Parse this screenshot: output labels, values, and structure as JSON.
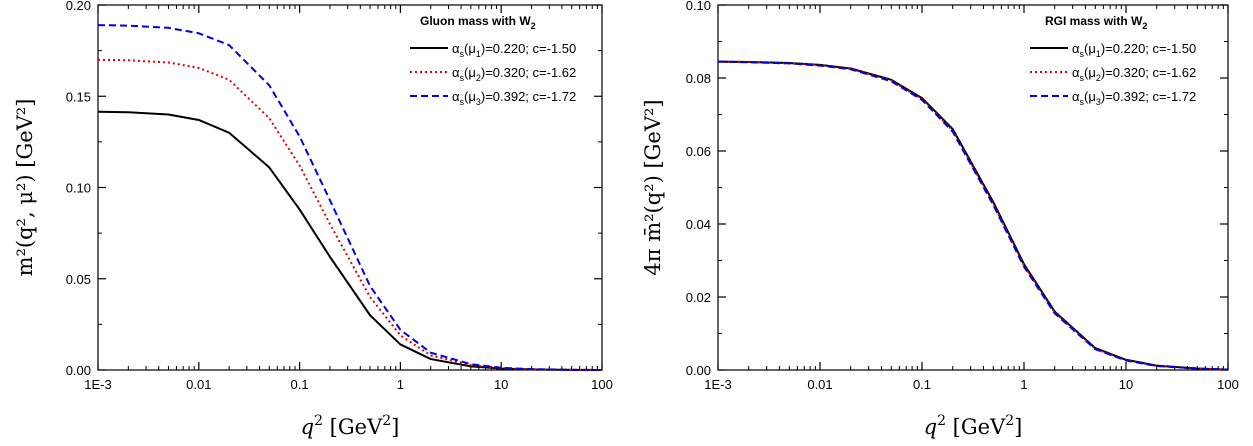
{
  "chart_data": [
    {
      "type": "line",
      "id": "left",
      "x_scale": "log",
      "xlim": [
        0.001,
        100
      ],
      "ylim": [
        0,
        0.2
      ],
      "x_ticks": [
        0.001,
        0.01,
        0.1,
        1,
        10,
        100
      ],
      "x_tick_labels": [
        "1E-3",
        "0.01",
        "0.1",
        "1",
        "10",
        "100"
      ],
      "y_ticks": [
        0,
        0.05,
        0.1,
        0.15,
        0.2
      ],
      "y_tick_labels": [
        "0.00",
        "0.05",
        "0.10",
        "0.15",
        "0.20"
      ],
      "xlabel": {
        "base": "q",
        "sup": "2",
        "unit": "[GeV",
        "unit_sup": "2",
        "unit_end": "]"
      },
      "ylabel": {
        "text": "m²(q², μ²) [GeV²]"
      },
      "legend": {
        "position": "top-right",
        "title": "Gluon mass with W",
        "title_sub": "2",
        "entries": [
          {
            "alpha": "α",
            "s": "s",
            "mu": "(μ",
            "idx": "1",
            "rest": ")=0.220; c=-1.50"
          },
          {
            "alpha": "α",
            "s": "s",
            "mu": "(μ",
            "idx": "2",
            "rest": ")=0.320; c=-1.62"
          },
          {
            "alpha": "α",
            "s": "s",
            "mu": "(μ",
            "idx": "3",
            "rest": ")=0.392; c=-1.72"
          }
        ]
      },
      "series": [
        {
          "color": "#000000",
          "dash": "solid",
          "x": [
            0.001,
            0.002,
            0.005,
            0.01,
            0.02,
            0.05,
            0.1,
            0.2,
            0.5,
            1,
            2,
            5,
            10,
            20,
            50,
            100
          ],
          "y": [
            0.1415,
            0.1412,
            0.14,
            0.137,
            0.13,
            0.111,
            0.088,
            0.062,
            0.03,
            0.014,
            0.006,
            0.002,
            0.0008,
            0.0003,
            0.0001,
            0.0
          ]
        },
        {
          "color": "#e00000",
          "dash": "dot",
          "x": [
            0.001,
            0.002,
            0.005,
            0.01,
            0.02,
            0.05,
            0.1,
            0.2,
            0.5,
            1,
            2,
            5,
            10,
            20,
            50,
            100
          ],
          "y": [
            0.17,
            0.1697,
            0.1685,
            0.1655,
            0.159,
            0.138,
            0.112,
            0.08,
            0.04,
            0.019,
            0.008,
            0.0027,
            0.001,
            0.0004,
            0.0001,
            0.0
          ]
        },
        {
          "color": "#0000e0",
          "dash": "dash",
          "x": [
            0.001,
            0.002,
            0.005,
            0.01,
            0.02,
            0.05,
            0.1,
            0.2,
            0.5,
            1,
            2,
            5,
            10,
            20,
            50,
            100
          ],
          "y": [
            0.189,
            0.1887,
            0.1875,
            0.1845,
            0.178,
            0.156,
            0.128,
            0.093,
            0.046,
            0.022,
            0.0095,
            0.0032,
            0.0012,
            0.0005,
            0.0001,
            0.0
          ]
        }
      ]
    },
    {
      "type": "line",
      "id": "right",
      "x_scale": "log",
      "xlim": [
        0.001,
        100
      ],
      "ylim": [
        0,
        0.1
      ],
      "x_ticks": [
        0.001,
        0.01,
        0.1,
        1,
        10,
        100
      ],
      "x_tick_labels": [
        "1E-3",
        "0.01",
        "0.1",
        "1",
        "10",
        "100"
      ],
      "y_ticks": [
        0,
        0.02,
        0.04,
        0.06,
        0.08,
        0.1
      ],
      "y_tick_labels": [
        "0.00",
        "0.02",
        "0.04",
        "0.06",
        "0.08",
        "0.10"
      ],
      "xlabel": {
        "base": "q",
        "sup": "2",
        "unit": "[GeV",
        "unit_sup": "2",
        "unit_end": "]"
      },
      "ylabel": {
        "text": "4π m̄²(q²) [GeV²]"
      },
      "legend": {
        "position": "top-right",
        "title": "RGI mass with W",
        "title_sub": "2",
        "entries": [
          {
            "alpha": "α",
            "s": "s",
            "mu": "(μ",
            "idx": "1",
            "rest": ")=0.220; c=-1.50"
          },
          {
            "alpha": "α",
            "s": "s",
            "mu": "(μ",
            "idx": "2",
            "rest": ")=0.320; c=-1.62"
          },
          {
            "alpha": "α",
            "s": "s",
            "mu": "(μ",
            "idx": "3",
            "rest": ")=0.392; c=-1.72"
          }
        ]
      },
      "series": [
        {
          "color": "#000000",
          "dash": "solid",
          "x": [
            0.001,
            0.002,
            0.005,
            0.01,
            0.02,
            0.05,
            0.1,
            0.2,
            0.5,
            1,
            2,
            5,
            10,
            20,
            50,
            100
          ],
          "y": [
            0.0845,
            0.0844,
            0.0841,
            0.0836,
            0.0826,
            0.0795,
            0.0745,
            0.066,
            0.046,
            0.029,
            0.016,
            0.006,
            0.0028,
            0.0012,
            0.0004,
            0.0001
          ]
        },
        {
          "color": "#e00000",
          "dash": "dot",
          "x": [
            0.001,
            0.002,
            0.005,
            0.01,
            0.02,
            0.05,
            0.1,
            0.2,
            0.5,
            1,
            2,
            5,
            10,
            20,
            50,
            100
          ],
          "y": [
            0.0845,
            0.0844,
            0.084,
            0.0835,
            0.0825,
            0.0793,
            0.0742,
            0.0656,
            0.0455,
            0.0286,
            0.0157,
            0.0058,
            0.0027,
            0.0011,
            0.0004,
            0.0001
          ]
        },
        {
          "color": "#0000e0",
          "dash": "dash",
          "x": [
            0.001,
            0.002,
            0.005,
            0.01,
            0.02,
            0.05,
            0.1,
            0.2,
            0.5,
            1,
            2,
            5,
            10,
            20,
            50,
            100
          ],
          "y": [
            0.0845,
            0.0843,
            0.084,
            0.0834,
            0.0824,
            0.0791,
            0.074,
            0.0653,
            0.0452,
            0.0283,
            0.0155,
            0.0057,
            0.0026,
            0.0011,
            0.0004,
            0.0001
          ]
        }
      ]
    }
  ]
}
